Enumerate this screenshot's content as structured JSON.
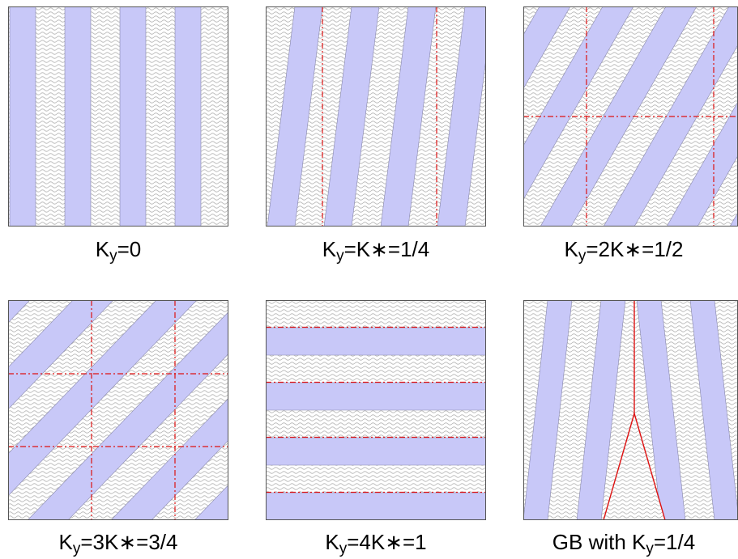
{
  "colors": {
    "stripe": "#c8c8f8",
    "hatch": "#bcbcbc",
    "boundary": "#dd1111",
    "frame": "#555555"
  },
  "panels": [
    {
      "caption": {
        "pre": "K",
        "sub": "y",
        "post": "=0"
      },
      "ky": 0
    },
    {
      "caption": {
        "pre": "K",
        "sub": "y",
        "post": "=K∗=1/4"
      },
      "ky": 0.25
    },
    {
      "caption": {
        "pre": "K",
        "sub": "y",
        "post": "=2K∗=1/2"
      },
      "ky": 0.5
    },
    {
      "caption": {
        "pre": "K",
        "sub": "y",
        "post": "=3K∗=3/4"
      },
      "ky": 0.75
    },
    {
      "caption": {
        "pre": "K",
        "sub": "y",
        "post": "=4K∗=1"
      },
      "ky": 1
    },
    {
      "caption": {
        "pre": "GB with K",
        "sub": "y",
        "post": "=1/4"
      },
      "ky": 0.25
    }
  ]
}
